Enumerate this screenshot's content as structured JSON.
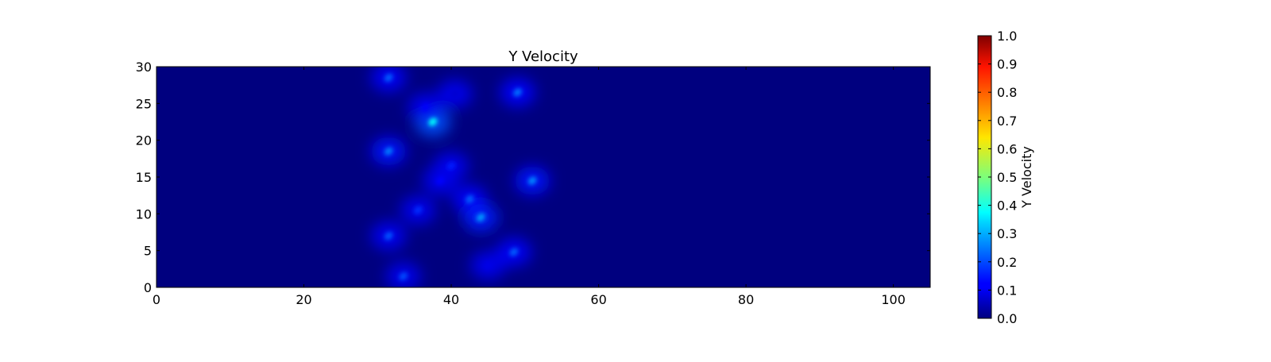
{
  "chart_data": {
    "type": "heatmap",
    "title": "Y Velocity",
    "xlabel": "",
    "ylabel": "",
    "xlim": [
      0,
      105
    ],
    "ylim": [
      0,
      30
    ],
    "x_ticks": [
      0,
      20,
      40,
      60,
      80,
      100
    ],
    "y_ticks": [
      0,
      5,
      10,
      15,
      20,
      25,
      30
    ],
    "colormap": "jet",
    "background_value": 0.0,
    "hotspots": [
      {
        "x": 31.5,
        "y": 28.5,
        "value": 0.22
      },
      {
        "x": 37.5,
        "y": 22.5,
        "value": 0.38
      },
      {
        "x": 36.5,
        "y": 24.5,
        "value": 0.12
      },
      {
        "x": 40.5,
        "y": 26.3,
        "value": 0.08
      },
      {
        "x": 49.0,
        "y": 26.5,
        "value": 0.24
      },
      {
        "x": 31.5,
        "y": 18.5,
        "value": 0.25
      },
      {
        "x": 40.0,
        "y": 16.5,
        "value": 0.15
      },
      {
        "x": 38.5,
        "y": 14.5,
        "value": 0.13
      },
      {
        "x": 51.0,
        "y": 14.5,
        "value": 0.26
      },
      {
        "x": 42.5,
        "y": 12.0,
        "value": 0.22
      },
      {
        "x": 44.0,
        "y": 9.5,
        "value": 0.28
      },
      {
        "x": 35.5,
        "y": 10.5,
        "value": 0.17
      },
      {
        "x": 31.5,
        "y": 7.0,
        "value": 0.21
      },
      {
        "x": 48.5,
        "y": 4.8,
        "value": 0.22
      },
      {
        "x": 45.0,
        "y": 3.0,
        "value": 0.1
      },
      {
        "x": 33.5,
        "y": 1.5,
        "value": 0.2
      }
    ],
    "colorbar": {
      "label": "Y Velocity",
      "range": [
        0.0,
        1.0
      ],
      "ticks": [
        "0.0",
        "0.1",
        "0.2",
        "0.3",
        "0.4",
        "0.5",
        "0.6",
        "0.7",
        "0.8",
        "0.9",
        "1.0"
      ]
    }
  }
}
